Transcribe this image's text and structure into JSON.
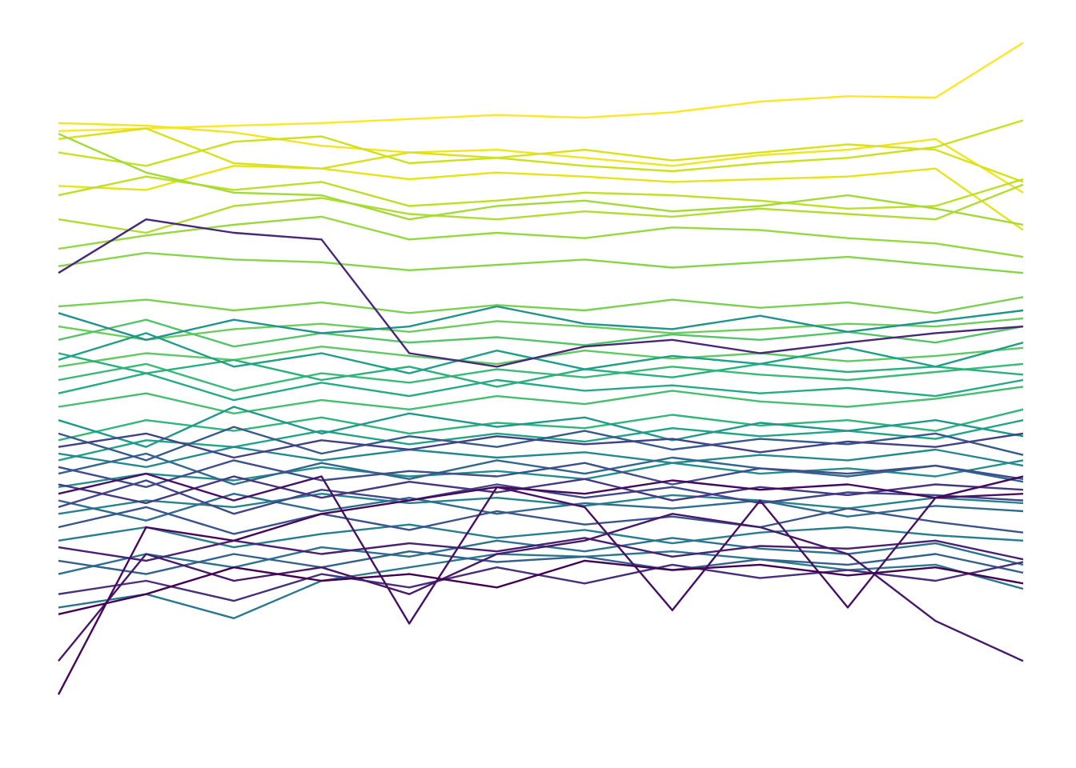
{
  "chart_data": {
    "type": "line",
    "title": "",
    "xlabel": "",
    "ylabel": "",
    "axes_visible": false,
    "grid": false,
    "legend": "none",
    "colormap": "viridis",
    "x": [
      0,
      1,
      2,
      3,
      4,
      5,
      6,
      7,
      8,
      9,
      10,
      11
    ],
    "xlim": [
      0,
      11
    ],
    "ylim": [
      -2.6,
      2.6
    ],
    "series": [
      {
        "color": "#fde725",
        "values": [
          1.86,
          1.88,
          1.9,
          1.92,
          1.95,
          1.98,
          1.96,
          2.0,
          2.08,
          2.12,
          2.11,
          2.52
        ]
      },
      {
        "color": "#f2e51d",
        "values": [
          1.92,
          1.9,
          1.85,
          1.75,
          1.7,
          1.72,
          1.66,
          1.6,
          1.68,
          1.72,
          1.8,
          1.4
        ]
      },
      {
        "color": "#e5e419",
        "values": [
          1.45,
          1.42,
          1.6,
          1.58,
          1.5,
          1.55,
          1.52,
          1.48,
          1.5,
          1.52,
          1.58,
          1.12
        ]
      },
      {
        "color": "#d8e219",
        "values": [
          1.8,
          1.88,
          1.62,
          1.58,
          1.7,
          1.66,
          1.72,
          1.64,
          1.7,
          1.76,
          1.72,
          1.48
        ]
      },
      {
        "color": "#cae11f",
        "values": [
          1.7,
          1.6,
          1.78,
          1.82,
          1.62,
          1.66,
          1.6,
          1.56,
          1.62,
          1.66,
          1.74,
          1.94
        ]
      },
      {
        "color": "#bddf26",
        "values": [
          1.38,
          1.52,
          1.42,
          1.48,
          1.3,
          1.34,
          1.4,
          1.38,
          1.34,
          1.28,
          1.3,
          1.5
        ]
      },
      {
        "color": "#b0dd2f",
        "values": [
          1.2,
          1.1,
          1.3,
          1.36,
          1.24,
          1.2,
          1.26,
          1.22,
          1.28,
          1.24,
          1.2,
          1.46
        ]
      },
      {
        "color": "#a2da37",
        "values": [
          1.84,
          1.55,
          1.4,
          1.38,
          1.2,
          1.3,
          1.34,
          1.26,
          1.3,
          1.38,
          1.28,
          1.16
        ]
      },
      {
        "color": "#95d840",
        "values": [
          0.98,
          1.08,
          1.16,
          1.22,
          1.05,
          1.1,
          1.06,
          1.14,
          1.12,
          1.06,
          1.02,
          0.92
        ]
      },
      {
        "color": "#86d549",
        "values": [
          0.85,
          0.95,
          0.9,
          0.88,
          0.82,
          0.86,
          0.9,
          0.84,
          0.88,
          0.92,
          0.86,
          0.8
        ]
      },
      {
        "color": "#7ad151",
        "values": [
          0.55,
          0.6,
          0.52,
          0.58,
          0.5,
          0.56,
          0.52,
          0.6,
          0.54,
          0.58,
          0.5,
          0.62
        ]
      },
      {
        "color": "#6ccd5a",
        "values": [
          0.4,
          0.3,
          0.38,
          0.42,
          0.36,
          0.44,
          0.4,
          0.35,
          0.38,
          0.42,
          0.4,
          0.46
        ]
      },
      {
        "color": "#5ec962",
        "values": [
          0.1,
          0.2,
          0.15,
          0.25,
          0.18,
          0.12,
          0.22,
          0.16,
          0.2,
          0.14,
          0.18,
          0.24
        ]
      },
      {
        "color": "#52c569",
        "values": [
          0.3,
          0.45,
          0.25,
          0.35,
          0.28,
          0.32,
          0.26,
          0.34,
          0.3,
          0.36,
          0.28,
          0.4
        ]
      },
      {
        "color": "#44bf70",
        "values": [
          -0.2,
          -0.1,
          -0.25,
          -0.15,
          -0.22,
          -0.12,
          -0.18,
          -0.08,
          -0.16,
          -0.2,
          -0.14,
          -0.05
        ]
      },
      {
        "color": "#3aba76",
        "values": [
          0.0,
          0.12,
          -0.08,
          0.05,
          -0.02,
          0.08,
          0.02,
          0.1,
          0.04,
          0.0,
          0.06,
          0.12
        ]
      },
      {
        "color": "#31b57b",
        "values": [
          -0.45,
          -0.3,
          -0.38,
          -0.28,
          -0.4,
          -0.32,
          -0.36,
          -0.26,
          -0.34,
          -0.3,
          -0.38,
          -0.22
        ]
      },
      {
        "color": "#2ab07f",
        "values": [
          0.2,
          0.05,
          0.15,
          0.0,
          0.1,
          -0.05,
          0.08,
          0.02,
          0.12,
          0.06,
          0.1,
          0.04
        ]
      },
      {
        "color": "#25ab82",
        "values": [
          -0.1,
          0.05,
          -0.15,
          -0.02,
          -0.12,
          0.0,
          -0.08,
          -0.04,
          -0.1,
          -0.06,
          -0.12,
          0.0
        ]
      },
      {
        "color": "#20a486",
        "values": [
          -0.6,
          -0.45,
          -0.5,
          -0.38,
          -0.48,
          -0.4,
          -0.46,
          -0.36,
          -0.42,
          -0.38,
          -0.44,
          -0.3
        ]
      },
      {
        "color": "#1f9f88",
        "values": [
          0.15,
          0.35,
          0.1,
          0.2,
          0.05,
          0.22,
          0.08,
          0.18,
          0.12,
          0.24,
          0.1,
          0.28
        ]
      },
      {
        "color": "#1f998a",
        "values": [
          -0.3,
          -0.5,
          -0.2,
          -0.4,
          -0.25,
          -0.35,
          -0.28,
          -0.45,
          -0.32,
          -0.38,
          -0.3,
          -0.42
        ]
      },
      {
        "color": "#1f948c",
        "values": [
          0.5,
          0.3,
          0.45,
          0.35,
          0.4,
          0.55,
          0.42,
          0.38,
          0.48,
          0.36,
          0.44,
          0.52
        ]
      },
      {
        "color": "#218e8d",
        "values": [
          -0.8,
          -0.7,
          -0.75,
          -0.65,
          -0.72,
          -0.68,
          -0.74,
          -0.62,
          -0.7,
          -0.66,
          -0.72,
          -0.6
        ]
      },
      {
        "color": "#23898e",
        "values": [
          -0.55,
          -0.65,
          -0.5,
          -0.6,
          -0.52,
          -0.58,
          -0.54,
          -0.62,
          -0.56,
          -0.6,
          -0.52,
          -0.64
        ]
      },
      {
        "color": "#25838e",
        "values": [
          -1.0,
          -0.9,
          -0.95,
          -0.85,
          -0.92,
          -0.88,
          -0.94,
          -0.86,
          -0.9,
          -0.96,
          -0.88,
          -0.92
        ]
      },
      {
        "color": "#277e8e",
        "values": [
          -1.2,
          -1.1,
          -1.25,
          -1.15,
          -1.08,
          -1.18,
          -1.12,
          -1.22,
          -1.14,
          -1.1,
          -1.16,
          -1.2
        ]
      },
      {
        "color": "#2a788e",
        "values": [
          -1.7,
          -1.6,
          -1.78,
          -1.5,
          -1.4,
          -1.3,
          -1.32,
          -1.28,
          -1.34,
          -1.42,
          -1.38,
          -1.56
        ]
      },
      {
        "color": "#2c728e",
        "values": [
          -1.45,
          -1.3,
          -1.4,
          -1.25,
          -1.32,
          -1.2,
          -1.28,
          -1.18,
          -1.26,
          -1.3,
          -1.22,
          -1.38
        ]
      },
      {
        "color": "#2f6c8e",
        "values": [
          -0.9,
          -1.05,
          -0.85,
          -0.98,
          -0.88,
          -1.0,
          -0.92,
          -0.96,
          -0.9,
          -1.02,
          -0.94,
          -0.98
        ]
      },
      {
        "color": "#31668e",
        "values": [
          -0.7,
          -0.55,
          -0.78,
          -0.62,
          -0.74,
          -0.6,
          -0.7,
          -0.58,
          -0.66,
          -0.72,
          -0.64,
          -0.76
        ]
      },
      {
        "color": "#34608d",
        "values": [
          -1.35,
          -1.45,
          -1.3,
          -1.4,
          -1.28,
          -1.36,
          -1.32,
          -1.42,
          -1.34,
          -1.38,
          -1.3,
          -1.44
        ]
      },
      {
        "color": "#375a8c",
        "values": [
          -0.4,
          -0.6,
          -0.35,
          -0.55,
          -0.42,
          -0.5,
          -0.38,
          -0.52,
          -0.44,
          -0.48,
          -0.4,
          -0.56
        ]
      },
      {
        "color": "#3a548c",
        "values": [
          -1.1,
          -0.95,
          -1.15,
          -1.0,
          -1.12,
          -0.98,
          -1.08,
          -1.02,
          -1.1,
          -0.96,
          -1.06,
          -1.14
        ]
      },
      {
        "color": "#3d4e8a",
        "values": [
          -0.65,
          -0.8,
          -0.6,
          -0.75,
          -0.68,
          -0.72,
          -0.62,
          -0.78,
          -0.66,
          -0.7,
          -0.64,
          -0.74
        ]
      },
      {
        "color": "#404688",
        "values": [
          -0.95,
          -0.75,
          -1.0,
          -0.82,
          -0.9,
          -0.78,
          -0.88,
          -0.8,
          -0.92,
          -0.84,
          -0.86,
          -0.9
        ]
      },
      {
        "color": "#424086",
        "values": [
          -0.5,
          -0.4,
          -0.58,
          -0.45,
          -0.52,
          -0.42,
          -0.48,
          -0.44,
          -0.54,
          -0.46,
          -0.5,
          -0.4
        ]
      },
      {
        "color": "#453781",
        "values": [
          -0.78,
          -0.92,
          -0.72,
          -0.88,
          -0.76,
          -0.84,
          -0.74,
          -0.9,
          -0.8,
          -0.86,
          -0.78,
          -0.82
        ]
      },
      {
        "color": "#472f7d",
        "values": [
          -1.6,
          -1.5,
          -1.65,
          -1.45,
          -1.55,
          -1.4,
          -1.52,
          -1.38,
          -1.48,
          -1.42,
          -1.5,
          -1.36
        ]
      },
      {
        "color": "#482878",
        "values": [
          0.8,
          1.2,
          1.1,
          1.05,
          0.2,
          0.1,
          0.25,
          0.3,
          0.2,
          0.28,
          0.35,
          0.4
        ]
      },
      {
        "color": "#482173",
        "values": [
          -1.25,
          -1.35,
          -1.2,
          -1.3,
          -1.22,
          -1.28,
          -1.18,
          -1.32,
          -1.24,
          -1.26,
          -1.2,
          -1.34
        ]
      },
      {
        "color": "#48186a",
        "values": [
          -2.1,
          -1.3,
          -1.5,
          -1.4,
          -1.6,
          -1.3,
          -1.2,
          -1.0,
          -1.1,
          -1.3,
          -1.8,
          -2.1
        ]
      },
      {
        "color": "#471063",
        "values": [
          -0.85,
          -0.7,
          -0.9,
          -0.72,
          -1.82,
          -0.8,
          -0.95,
          -1.72,
          -0.9,
          -1.7,
          -0.88,
          -0.85
        ]
      },
      {
        "color": "#46085c",
        "values": [
          -2.35,
          -1.1,
          -1.2,
          -1.0,
          -0.9,
          -0.8,
          -0.85,
          -0.75,
          -0.82,
          -0.78,
          -0.88,
          -0.72
        ]
      },
      {
        "color": "#440154",
        "values": [
          -1.75,
          -1.6,
          -1.4,
          -1.5,
          -1.45,
          -1.55,
          -1.35,
          -1.42,
          -1.38,
          -1.46,
          -1.4,
          -1.52
        ]
      }
    ]
  }
}
